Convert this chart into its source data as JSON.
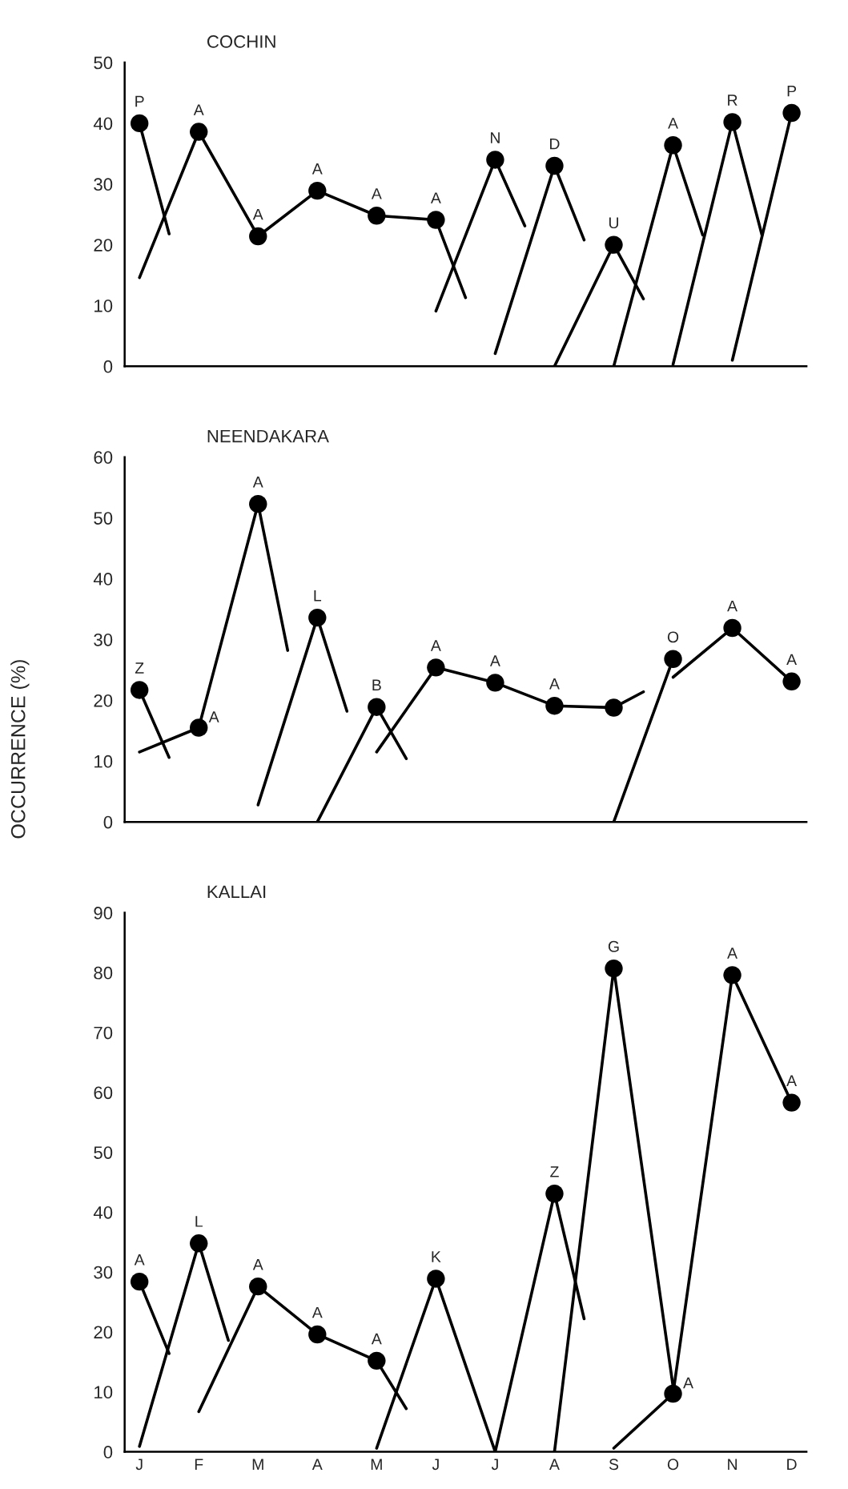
{
  "chart_data": [
    {
      "type": "line",
      "title": "COCHIN",
      "ylim": [
        0,
        50
      ],
      "yticks": [
        0,
        10,
        20,
        30,
        40,
        50
      ],
      "tick_labels": "y",
      "categories": [
        null,
        null,
        null,
        null,
        null,
        null,
        null,
        null,
        null,
        null,
        null,
        null,
        null,
        null,
        null,
        null,
        null,
        null,
        null,
        null,
        null,
        null,
        null
      ],
      "series": [
        {
          "type": "line",
          "color": "#000000",
          "values": [
            40,
            21.8,
            null,
            null,
            null,
            null,
            null,
            null,
            null,
            null,
            null,
            null,
            null,
            null,
            null,
            null,
            null,
            null,
            null,
            null,
            null,
            null,
            null
          ]
        },
        {
          "type": "line",
          "color": "#000000",
          "values": [
            14.6,
            null,
            38.6,
            null,
            21.4,
            null,
            28.9,
            null,
            24.8,
            null,
            24.1,
            11.3,
            null,
            null,
            null,
            null,
            null,
            null,
            null,
            null,
            null,
            null,
            null
          ]
        },
        {
          "type": "line",
          "color": "#000000",
          "values": [
            null,
            null,
            null,
            null,
            null,
            null,
            null,
            null,
            null,
            null,
            9.1,
            null,
            34,
            23.1,
            null,
            null,
            null,
            null,
            null,
            null,
            null,
            null,
            null
          ]
        },
        {
          "type": "line",
          "color": "#000000",
          "values": [
            null,
            null,
            null,
            null,
            null,
            null,
            null,
            null,
            null,
            null,
            null,
            null,
            2.1,
            null,
            33,
            20.8,
            null,
            null,
            null,
            null,
            null,
            null,
            null
          ]
        },
        {
          "type": "line",
          "color": "#000000",
          "values": [
            null,
            null,
            null,
            null,
            null,
            null,
            null,
            null,
            null,
            null,
            null,
            null,
            null,
            null,
            0,
            null,
            20,
            11.1,
            null,
            null,
            null,
            null,
            null
          ]
        },
        {
          "type": "line",
          "color": "#000000",
          "values": [
            null,
            null,
            null,
            null,
            null,
            null,
            null,
            null,
            null,
            null,
            null,
            null,
            null,
            null,
            null,
            null,
            0,
            null,
            36.4,
            21.6,
            null,
            null,
            null
          ]
        },
        {
          "type": "line",
          "color": "#000000",
          "values": [
            null,
            null,
            null,
            null,
            null,
            null,
            null,
            null,
            null,
            null,
            null,
            null,
            null,
            null,
            null,
            null,
            null,
            null,
            0.3,
            null,
            40.2,
            21.6,
            null
          ]
        },
        {
          "type": "line",
          "color": "#000000",
          "values": [
            null,
            null,
            null,
            null,
            null,
            null,
            null,
            null,
            null,
            null,
            null,
            null,
            null,
            null,
            null,
            null,
            null,
            null,
            null,
            null,
            1,
            null,
            41.7
          ]
        },
        {
          "type": "scatter",
          "color": "#000000",
          "marker": "circle",
          "values": [
            40,
            null,
            38.6,
            null,
            21.4,
            null,
            28.9,
            null,
            24.8,
            null,
            24.1,
            null,
            34,
            null,
            33,
            null,
            20,
            null,
            36.4,
            null,
            40.2,
            null,
            41.7
          ],
          "value_labels": [
            "P",
            null,
            "A",
            null,
            "A",
            null,
            "A",
            null,
            "A",
            null,
            "A",
            null,
            "N",
            null,
            "D",
            null,
            "U",
            null,
            "A",
            null,
            "R",
            null,
            "P"
          ]
        }
      ]
    },
    {
      "type": "line",
      "title": "NEENDAKARA",
      "ylabel": "OCCURRENCE (%)",
      "ylim": [
        0,
        60
      ],
      "yticks": [
        0,
        10,
        20,
        30,
        40,
        50,
        60
      ],
      "tick_labels": "y",
      "categories": [
        null,
        null,
        null,
        null,
        null,
        null,
        null,
        null,
        null,
        null,
        null,
        null,
        null,
        null,
        null,
        null,
        null,
        null,
        null,
        null,
        null,
        null,
        null
      ],
      "series": [
        {
          "type": "line",
          "color": "#000000",
          "values": [
            21.7,
            10.6,
            null,
            null,
            null,
            null,
            null,
            null,
            null,
            null,
            null,
            null,
            null,
            null,
            null,
            null,
            null,
            null,
            null,
            null,
            null,
            null,
            null
          ]
        },
        {
          "type": "line",
          "color": "#000000",
          "values": [
            11.5,
            null,
            15.5,
            null,
            52.3,
            28.2,
            null,
            null,
            null,
            null,
            null,
            null,
            null,
            null,
            null,
            null,
            null,
            null,
            null,
            null,
            null,
            null,
            null
          ]
        },
        {
          "type": "line",
          "color": "#000000",
          "values": [
            null,
            null,
            null,
            null,
            2.8,
            null,
            33.6,
            18.2,
            null,
            null,
            null,
            null,
            null,
            null,
            null,
            null,
            null,
            null,
            null,
            null,
            null,
            null,
            null
          ]
        },
        {
          "type": "line",
          "color": "#000000",
          "values": [
            null,
            null,
            null,
            null,
            null,
            null,
            0,
            null,
            18.9,
            10.4,
            null,
            null,
            null,
            null,
            null,
            null,
            null,
            null,
            null,
            null,
            null,
            null,
            null
          ]
        },
        {
          "type": "line",
          "color": "#000000",
          "values": [
            null,
            null,
            null,
            null,
            null,
            null,
            null,
            null,
            11.5,
            null,
            25.4,
            null,
            22.9,
            null,
            19.1,
            null,
            18.8,
            21.4,
            null,
            null,
            null,
            null,
            null
          ]
        },
        {
          "type": "line",
          "color": "#000000",
          "values": [
            null,
            null,
            null,
            null,
            null,
            null,
            null,
            null,
            null,
            null,
            null,
            null,
            null,
            null,
            null,
            null,
            0,
            null,
            26.8,
            null,
            null,
            null,
            null
          ]
        },
        {
          "type": "line",
          "color": "#000000",
          "values": [
            null,
            null,
            null,
            null,
            null,
            null,
            null,
            null,
            null,
            null,
            null,
            null,
            null,
            null,
            null,
            null,
            null,
            null,
            23.8,
            null,
            31.9,
            null,
            23.1
          ]
        },
        {
          "type": "scatter",
          "color": "#000000",
          "marker": "circle",
          "values": [
            21.7,
            null,
            15.5,
            null,
            52.3,
            null,
            33.6,
            null,
            18.9,
            null,
            25.4,
            null,
            22.9,
            null,
            19.1,
            null,
            18.8,
            null,
            26.8,
            null,
            31.9,
            null,
            23.1
          ],
          "value_labels": [
            "Z",
            null,
            "A",
            null,
            "A",
            null,
            "L",
            null,
            "B",
            null,
            "A",
            null,
            "A",
            null,
            "A",
            null,
            null,
            null,
            "O",
            null,
            "A",
            null,
            "A"
          ]
        }
      ]
    },
    {
      "type": "line",
      "title": "KALLAI",
      "ylim": [
        0,
        90
      ],
      "yticks": [
        0,
        10,
        20,
        30,
        40,
        50,
        60,
        70,
        80,
        90
      ],
      "categories": [
        "J",
        null,
        "F",
        null,
        "M",
        null,
        "A",
        null,
        "M",
        null,
        "J",
        null,
        "J",
        null,
        "A",
        null,
        "S",
        null,
        "O",
        null,
        "N",
        null,
        "D"
      ],
      "series": [
        {
          "type": "line",
          "color": "#000000",
          "values": [
            28.4,
            16.4,
            null,
            null,
            null,
            null,
            null,
            null,
            null,
            null,
            null,
            null,
            null,
            null,
            null,
            null,
            null,
            null,
            null,
            null,
            null,
            null,
            null
          ]
        },
        {
          "type": "line",
          "color": "#000000",
          "values": [
            0.9,
            null,
            34.8,
            18.6,
            null,
            null,
            null,
            null,
            null,
            null,
            null,
            null,
            null,
            null,
            null,
            null,
            null,
            null,
            null,
            null,
            null,
            null,
            null
          ]
        },
        {
          "type": "line",
          "color": "#000000",
          "values": [
            null,
            null,
            6.7,
            null,
            27.6,
            null,
            19.6,
            null,
            15.2,
            7.2,
            null,
            null,
            null,
            null,
            null,
            null,
            null,
            null,
            null,
            null,
            null,
            null,
            null
          ]
        },
        {
          "type": "line",
          "color": "#000000",
          "values": [
            null,
            null,
            null,
            null,
            null,
            null,
            null,
            null,
            0.6,
            null,
            28.9,
            null,
            0,
            null,
            43.1,
            22.2,
            null,
            null,
            null,
            null,
            null,
            null,
            null
          ]
        },
        {
          "type": "line",
          "color": "#000000",
          "values": [
            null,
            null,
            null,
            null,
            null,
            null,
            null,
            null,
            null,
            null,
            null,
            null,
            null,
            null,
            0,
            null,
            80.7,
            null,
            10.9,
            null,
            null,
            null,
            null
          ]
        },
        {
          "type": "line",
          "color": "#000000",
          "values": [
            null,
            null,
            null,
            null,
            null,
            null,
            null,
            null,
            null,
            null,
            null,
            null,
            null,
            null,
            null,
            null,
            0.6,
            null,
            9.7,
            null,
            79.6,
            null,
            58.3
          ]
        },
        {
          "type": "scatter",
          "color": "#000000",
          "marker": "circle",
          "values": [
            28.4,
            null,
            34.8,
            null,
            27.6,
            null,
            19.6,
            null,
            15.2,
            null,
            28.9,
            null,
            null,
            null,
            43.1,
            null,
            80.7,
            null,
            9.7,
            null,
            79.6,
            null,
            58.3
          ],
          "value_labels": [
            "A",
            null,
            "L",
            null,
            "A",
            null,
            "A",
            null,
            "A",
            null,
            "K",
            null,
            null,
            null,
            "Z",
            null,
            "G",
            null,
            "A",
            null,
            "A",
            null,
            "A"
          ]
        }
      ]
    }
  ]
}
